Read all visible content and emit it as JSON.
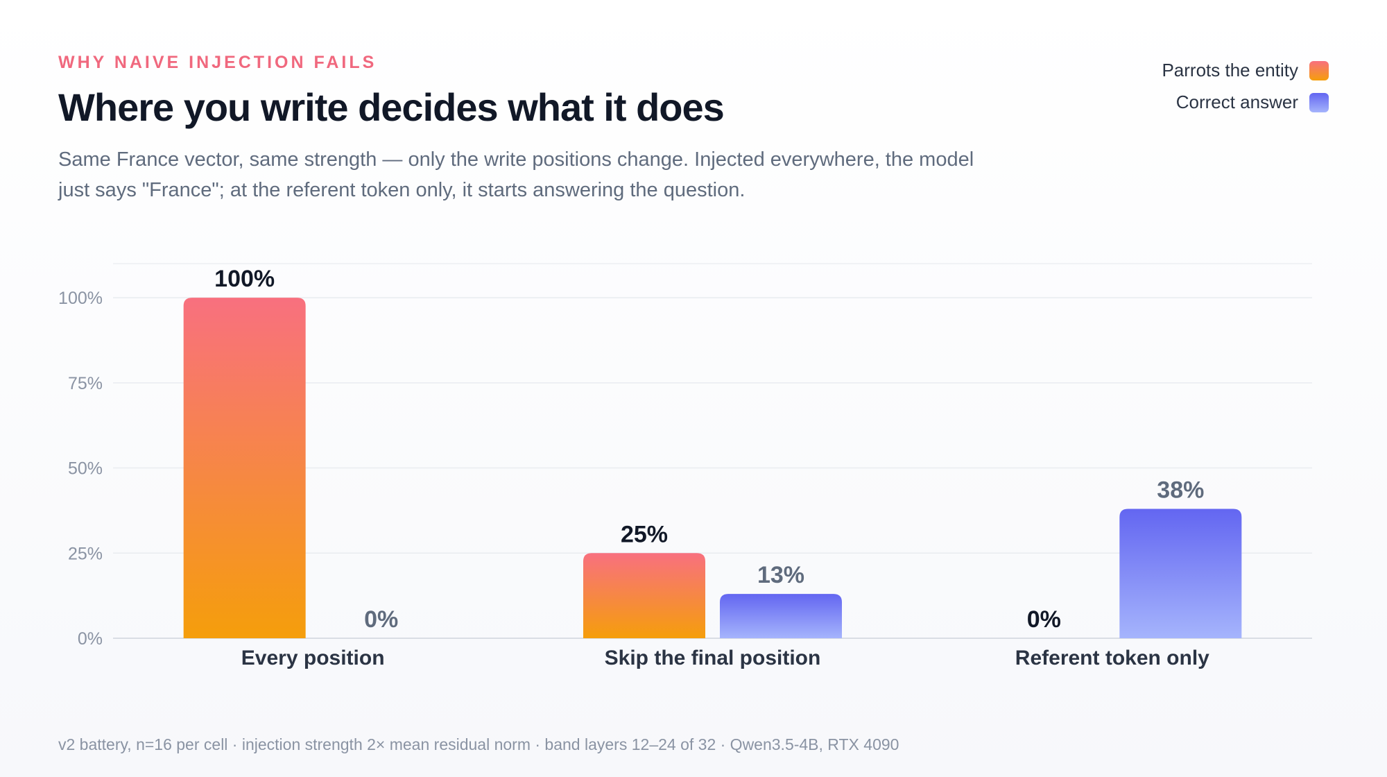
{
  "header": {
    "kicker": "WHY NAIVE INJECTION FAILS",
    "title": "Where you write decides what it does",
    "subtitle": "Same France vector, same strength — only the write positions change. Injected everywhere, the model just says \"France\"; at the referent token only, it starts answering the question."
  },
  "legend": [
    {
      "label": "Parrots the entity",
      "color_top": "#f8707f",
      "color_bottom": "#f59e0b"
    },
    {
      "label": "Correct answer",
      "color_top": "#6366f1",
      "color_bottom": "#a5b4fc"
    }
  ],
  "footnote": "v2 battery, n=16 per cell · injection strength 2× mean residual norm · band layers 12–24 of 32 · Qwen3.5-4B, RTX 4090",
  "chart_data": {
    "type": "bar",
    "title": "Where you write decides what it does",
    "xlabel": "",
    "ylabel": "",
    "categories": [
      "Every position",
      "Skip the final position",
      "Referent token only"
    ],
    "series": [
      {
        "name": "Parrots the entity",
        "values": [
          100,
          25,
          0
        ],
        "labels": [
          "100%",
          "25%",
          "0%"
        ]
      },
      {
        "name": "Correct answer",
        "values": [
          0,
          13,
          38
        ],
        "labels": [
          "0%",
          "13%",
          "38%"
        ]
      }
    ],
    "yticks": [
      "0%",
      "25%",
      "50%",
      "75%",
      "100%"
    ],
    "ylim": [
      0,
      110
    ],
    "grid": true,
    "legend_position": "top-right"
  }
}
